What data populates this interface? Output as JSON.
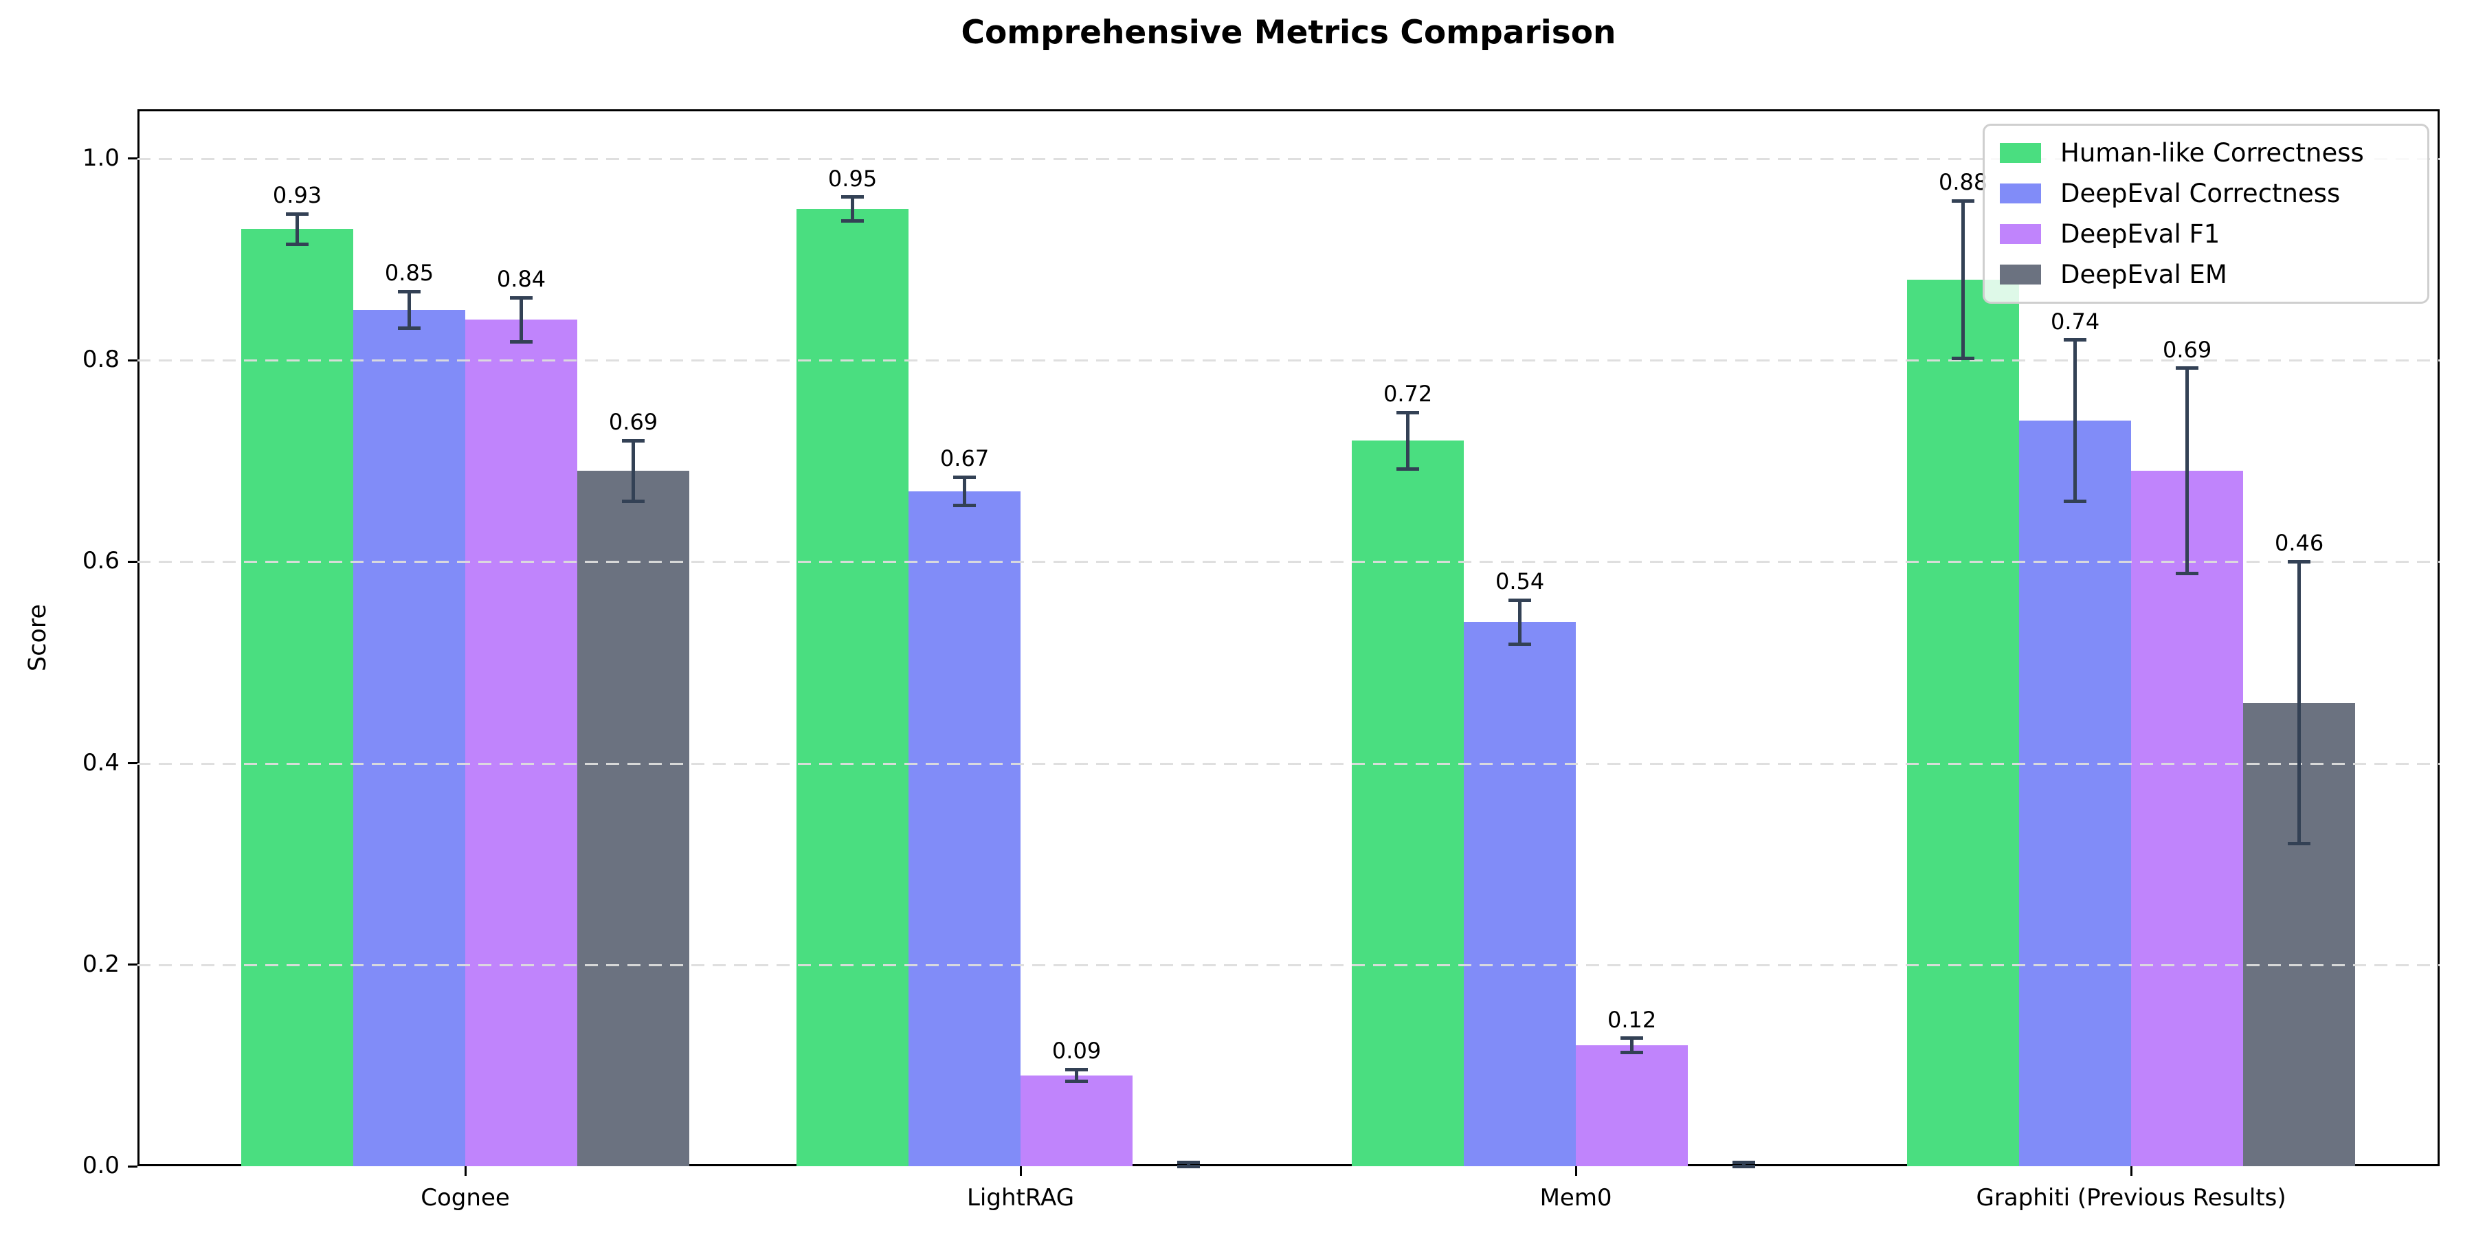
{
  "figure": {
    "title": "Comprehensive Metrics Comparison",
    "background_color": "#ffffff"
  },
  "chart_data": {
    "type": "bar",
    "title": "Comprehensive Metrics Comparison",
    "xlabel": "",
    "ylabel": "Score",
    "categories": [
      "Cognee",
      "LightRAG",
      "Mem0",
      "Graphiti (Previous Results)"
    ],
    "series": [
      {
        "name": "Human-like Correctness",
        "color": "#4ade80",
        "values": [
          0.93,
          0.95,
          0.72,
          0.88
        ],
        "errors": [
          0.015,
          0.012,
          0.028,
          0.078
        ],
        "bar_labels": [
          "0.93",
          "0.95",
          "0.72",
          "0.88"
        ]
      },
      {
        "name": "DeepEval Correctness",
        "color": "#818cf8",
        "values": [
          0.85,
          0.67,
          0.54,
          0.74
        ],
        "errors": [
          0.018,
          0.014,
          0.022,
          0.08
        ],
        "bar_labels": [
          "0.85",
          "0.67",
          "0.54",
          "0.74"
        ]
      },
      {
        "name": "DeepEval F1",
        "color": "#c084fc",
        "values": [
          0.84,
          0.09,
          0.12,
          0.69
        ],
        "errors": [
          0.022,
          0.006,
          0.007,
          0.102
        ],
        "bar_labels": [
          "0.84",
          "0.09",
          "0.12",
          "0.69"
        ]
      },
      {
        "name": "DeepEval EM",
        "color": "#6b7280",
        "values": [
          0.69,
          0.0,
          0.0,
          0.46
        ],
        "errors": [
          0.03,
          0.004,
          0.004,
          0.14
        ],
        "bar_labels": [
          "0.69",
          "",
          "",
          "0.46"
        ]
      }
    ],
    "ytick_labels": [
      "0.0",
      "0.2",
      "0.4",
      "0.6",
      "0.8",
      "1.0"
    ],
    "yticks": [
      0.0,
      0.2,
      0.4,
      0.6,
      0.8,
      1.0
    ],
    "ylim": [
      0,
      1.05
    ],
    "grid": {
      "axis": "y",
      "style": "dashed",
      "color": "#dcdcdc"
    },
    "error_bar_color": "#334155",
    "legend": {
      "position": "upper right"
    }
  }
}
